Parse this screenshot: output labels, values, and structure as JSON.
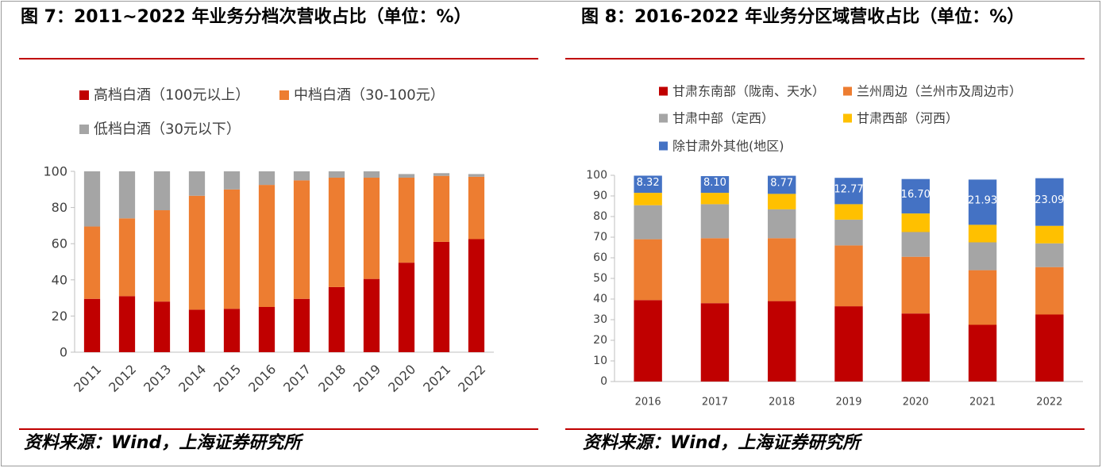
{
  "figures": [
    {
      "title": "图 7：2011~2022 年业务分档次营收占比（单位：%）",
      "source": "资料来源：Wind，上海证券研究所"
    },
    {
      "title": "图 8：2016-2022 年业务分区域营收占比（单位：%）",
      "source": "资料来源：Wind，上海证券研究所"
    }
  ],
  "chart_data": [
    {
      "type": "bar",
      "stacked": true,
      "title": "",
      "xlabel": "",
      "ylabel": "",
      "categories": [
        "2011",
        "2012",
        "2013",
        "2014",
        "2015",
        "2016",
        "2017",
        "2018",
        "2019",
        "2020",
        "2021",
        "2022"
      ],
      "ylim": [
        0,
        100
      ],
      "yticks": [
        0,
        20,
        40,
        60,
        80,
        100
      ],
      "grid": false,
      "legend_position": "top",
      "series": [
        {
          "name": "高档白酒（100元以上）",
          "color": "#C00000",
          "values": [
            29.5,
            31,
            28,
            23.5,
            24,
            25,
            29.5,
            36,
            40.5,
            49.5,
            61,
            62.5
          ]
        },
        {
          "name": "中档白酒（30-100元）",
          "color": "#ED7D31",
          "values": [
            40,
            43,
            50.5,
            63,
            66,
            67.5,
            65.5,
            60.5,
            56,
            47,
            36.5,
            34.5
          ]
        },
        {
          "name": "低档白酒（30元以下）",
          "color": "#A5A5A5",
          "values": [
            30.5,
            26,
            21.5,
            13.5,
            10,
            7.5,
            5,
            3.5,
            3.5,
            2,
            1.5,
            1.5
          ]
        }
      ]
    },
    {
      "type": "bar",
      "stacked": true,
      "title": "",
      "xlabel": "",
      "ylabel": "",
      "categories": [
        "2016",
        "2017",
        "2018",
        "2019",
        "2020",
        "2021",
        "2022"
      ],
      "ylim": [
        0,
        100
      ],
      "yticks": [
        0,
        10,
        20,
        30,
        40,
        50,
        60,
        70,
        80,
        90,
        100
      ],
      "grid": false,
      "legend_position": "top",
      "series": [
        {
          "name": "甘肃东南部（陇南、天水）",
          "color": "#C00000",
          "values": [
            39.5,
            38,
            39,
            36.5,
            33,
            27.5,
            32.5
          ]
        },
        {
          "name": "兰州周边（兰州市及周边市）",
          "color": "#ED7D31",
          "values": [
            29.5,
            31.5,
            30.5,
            29.5,
            27.5,
            26.5,
            23
          ]
        },
        {
          "name": "甘肃中部（定西）",
          "color": "#A5A5A5",
          "values": [
            16.5,
            16.5,
            14,
            12.5,
            12,
            13.5,
            11.5
          ]
        },
        {
          "name": "甘肃西部（河西）",
          "color": "#FFC000",
          "values": [
            6,
            5.5,
            7.5,
            7.5,
            9,
            8.5,
            8.5
          ]
        },
        {
          "name": "除甘肃外其他(地区)",
          "color": "#4472C4",
          "values": [
            8.32,
            8.1,
            8.77,
            12.77,
            16.7,
            21.93,
            23.09
          ],
          "data_labels": [
            "8.32",
            "8.10",
            "8.77",
            "12.77",
            "16.70",
            "21.93",
            "23.09"
          ]
        }
      ]
    }
  ]
}
